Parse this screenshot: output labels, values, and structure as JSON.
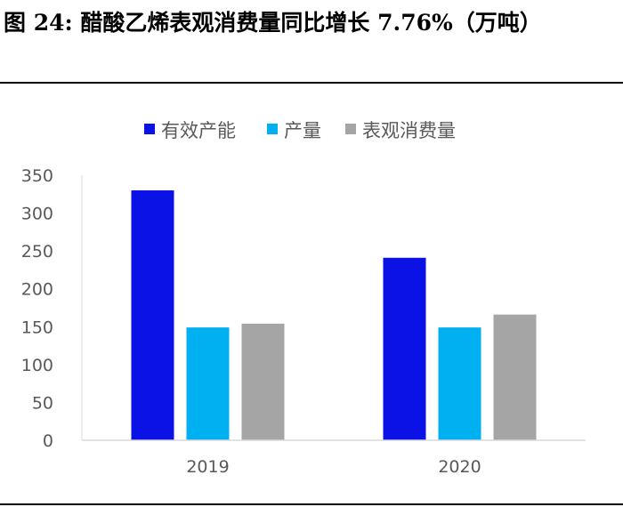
{
  "figure": {
    "title": "图  24:  醋酸乙烯表观消费量同比增长 7.76%（万吨）"
  },
  "chart_data": {
    "type": "bar",
    "title": "图 24: 醋酸乙烯表观消费量同比增长 7.76%（万吨）",
    "categories": [
      "2019",
      "2020"
    ],
    "series": [
      {
        "name": "有效产能",
        "values": [
          330,
          241
        ],
        "color": "#0a12e6"
      },
      {
        "name": "产量",
        "values": [
          149,
          149
        ],
        "color": "#00b0f0"
      },
      {
        "name": "表观消费量",
        "values": [
          154,
          166
        ],
        "color": "#a5a5a5"
      }
    ],
    "xlabel": "",
    "ylabel": "",
    "ylim": [
      0,
      350
    ],
    "yticks": [
      0,
      50,
      100,
      150,
      200,
      250,
      300,
      350
    ],
    "grid": false,
    "legend_position": "top"
  }
}
